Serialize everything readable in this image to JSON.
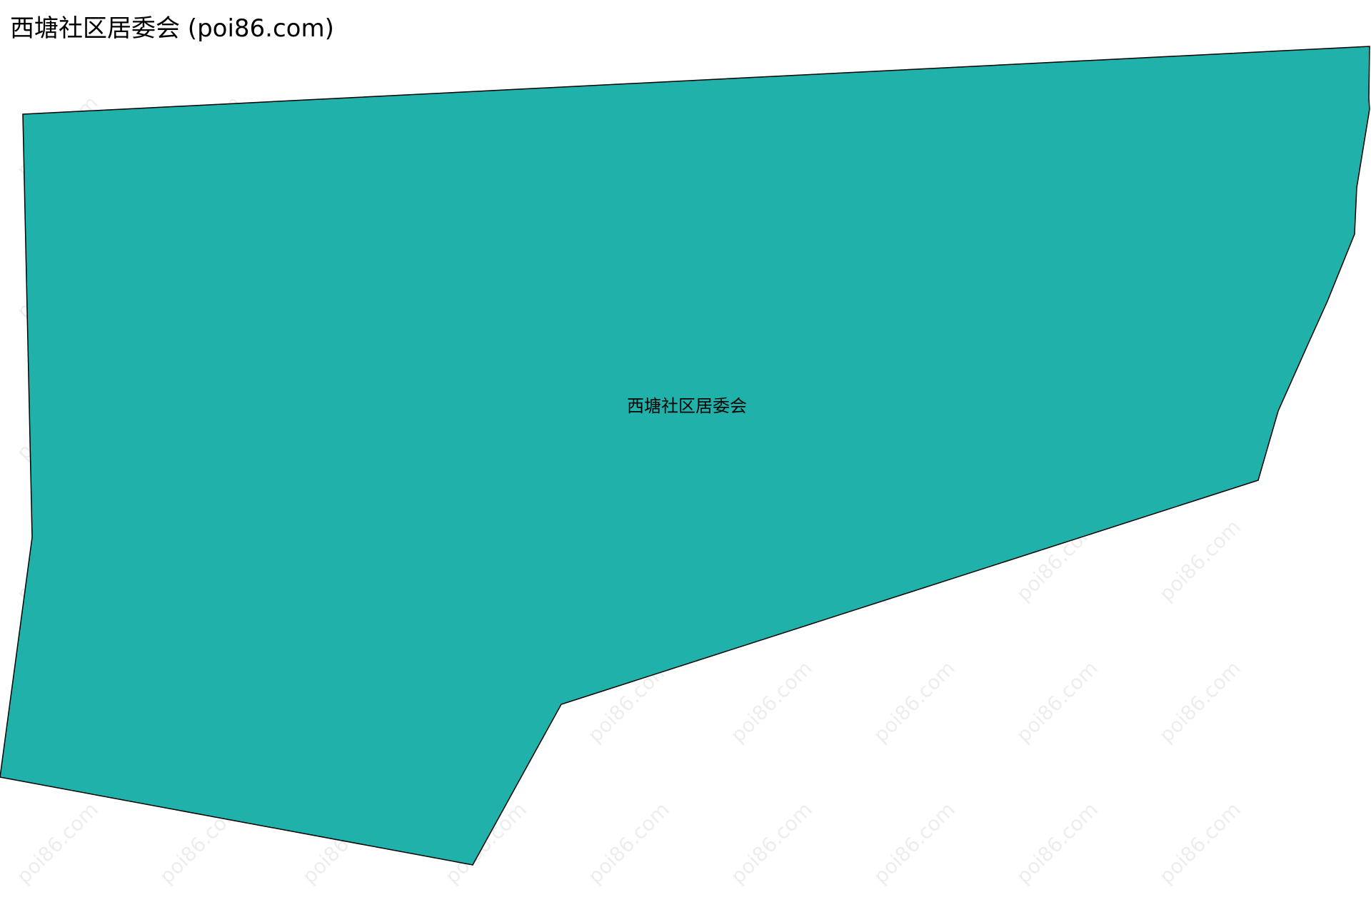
{
  "title": "西塘社区居委会 (poi86.com)",
  "region": {
    "name": "西塘社区居委会",
    "fill_color": "#20b2aa",
    "stroke_color": "#000000"
  },
  "watermark": "poi86.com"
}
